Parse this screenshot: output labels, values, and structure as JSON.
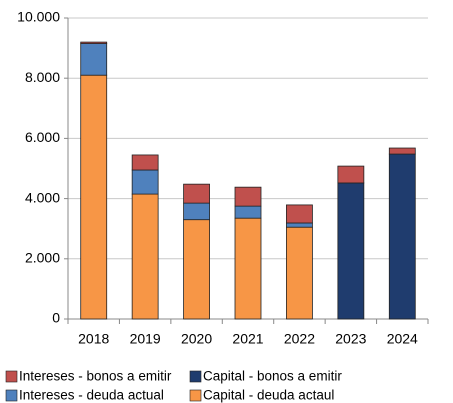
{
  "chart_data": {
    "type": "stacked_bar",
    "categories": [
      "2018",
      "2019",
      "2020",
      "2021",
      "2022",
      "2023",
      "2024"
    ],
    "series": [
      {
        "name": "Capital - deuda actaul",
        "color": "#f79646",
        "values": [
          8100,
          4150,
          3300,
          3350,
          3050,
          null,
          null
        ]
      },
      {
        "name": "Capital - bonos a emitir",
        "color": "#1f3c6e",
        "values": [
          null,
          null,
          null,
          null,
          null,
          4520,
          5480
        ]
      },
      {
        "name": "Intereses - deuda actual",
        "color": "#4f81bd",
        "values": [
          1050,
          800,
          550,
          400,
          140,
          null,
          null
        ]
      },
      {
        "name": "Intereses - bonos a emitir",
        "color": "#c0504d",
        "values": [
          50,
          500,
          630,
          630,
          600,
          560,
          200
        ]
      }
    ],
    "ylim": [
      0,
      10000
    ],
    "yticks": [
      0,
      {
        "value": 2000,
        "label": "2.000"
      },
      {
        "value": 4000,
        "label": "4.000"
      },
      {
        "value": 6000,
        "label": "6.000"
      },
      {
        "value": 8000,
        "label": "8.000"
      },
      {
        "value": 10000,
        "label": "10.000"
      }
    ],
    "grid": true,
    "legend": "bottom"
  }
}
